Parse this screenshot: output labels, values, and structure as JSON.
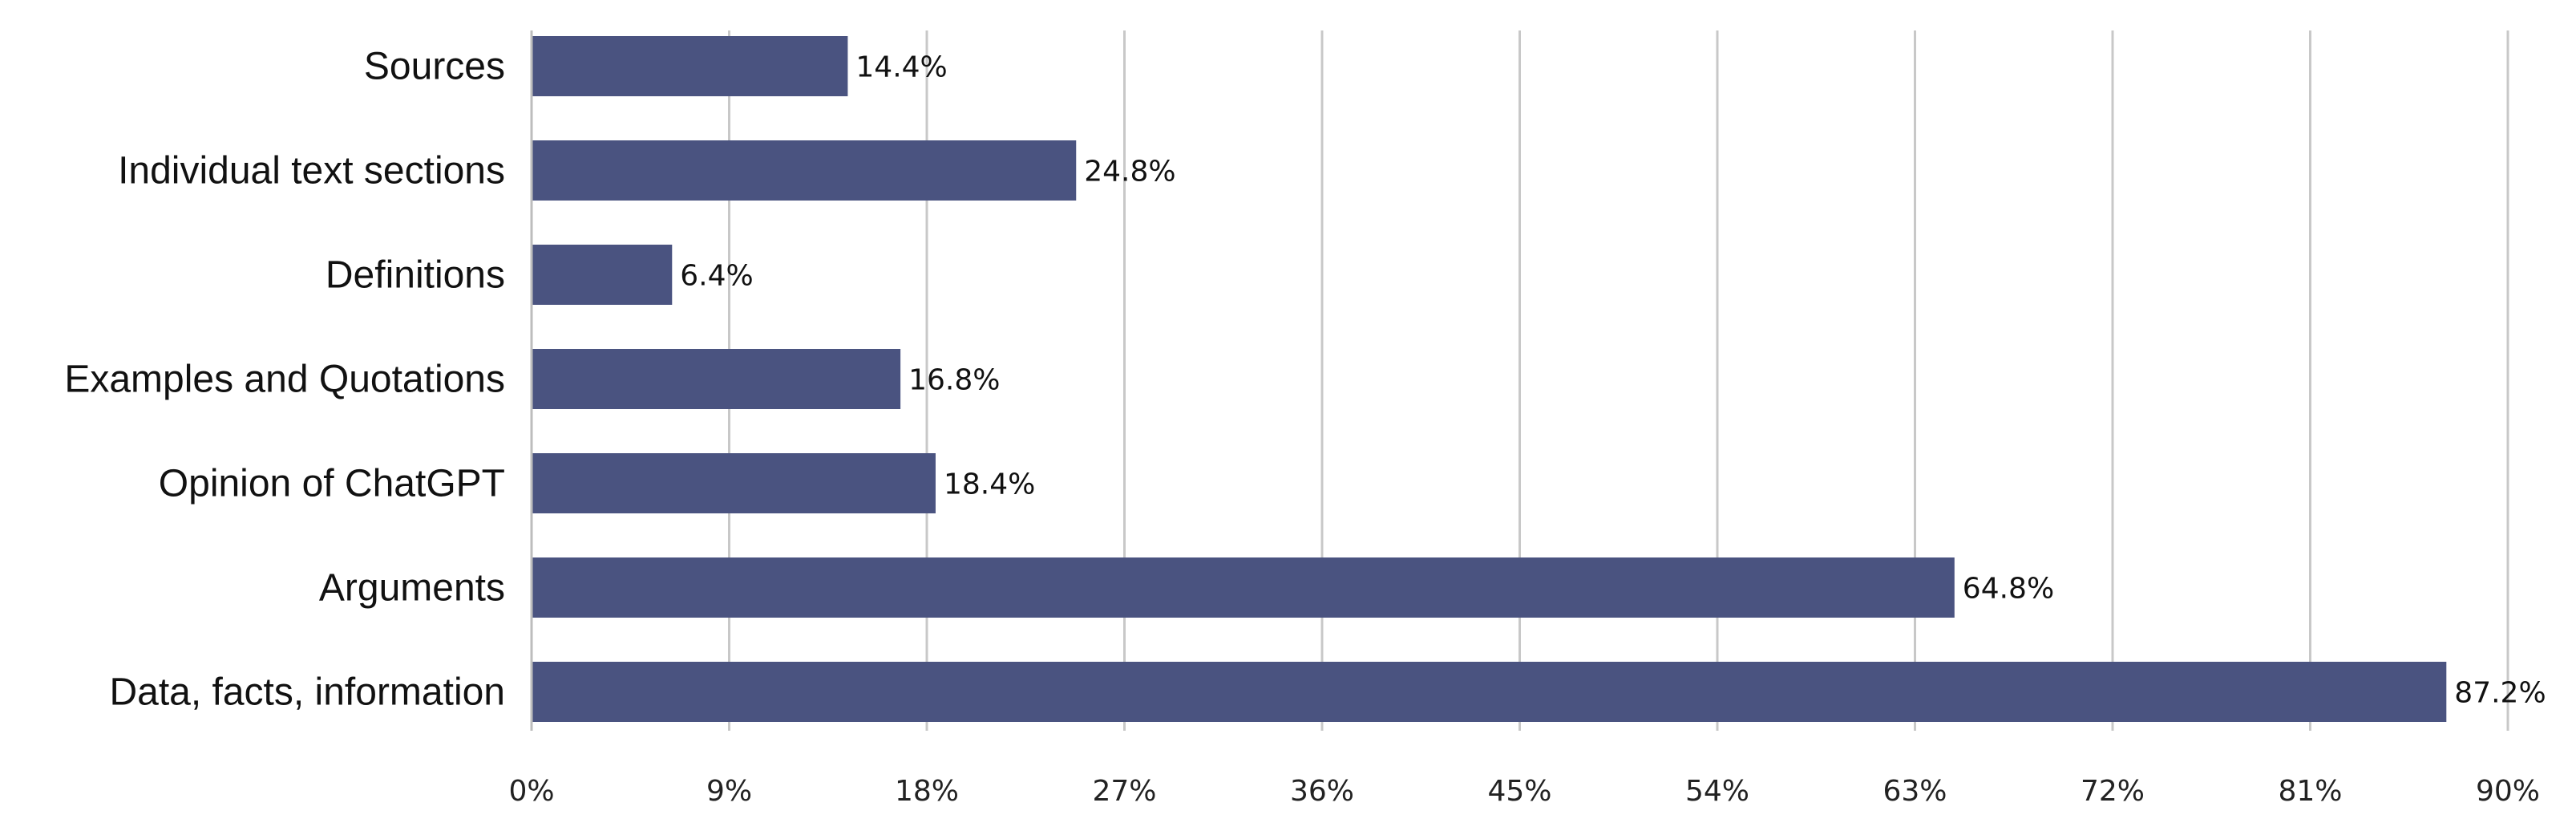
{
  "chart_data": {
    "type": "bar",
    "orientation": "horizontal",
    "categories": [
      "Sources",
      "Individual text sections",
      "Definitions",
      "Examples and Quotations",
      "Opinion of ChatGPT",
      "Arguments",
      "Data, facts, information"
    ],
    "values": [
      14.4,
      24.8,
      6.4,
      16.8,
      18.4,
      64.8,
      87.2
    ],
    "data_labels": [
      "14.4%",
      "24.8%",
      "6.4%",
      "16.8%",
      "18.4%",
      "64.8%",
      "87.2%"
    ],
    "xlim": [
      0,
      90
    ],
    "x_ticks": [
      0,
      9,
      18,
      27,
      36,
      45,
      54,
      63,
      72,
      81,
      90
    ],
    "x_tick_labels": [
      "0%",
      "9%",
      "18%",
      "27%",
      "36%",
      "45%",
      "54%",
      "63%",
      "72%",
      "81%",
      "90%"
    ],
    "grid": true,
    "legend": false,
    "bar_color": "#4a5380",
    "grid_color": "#c8c8c8"
  }
}
